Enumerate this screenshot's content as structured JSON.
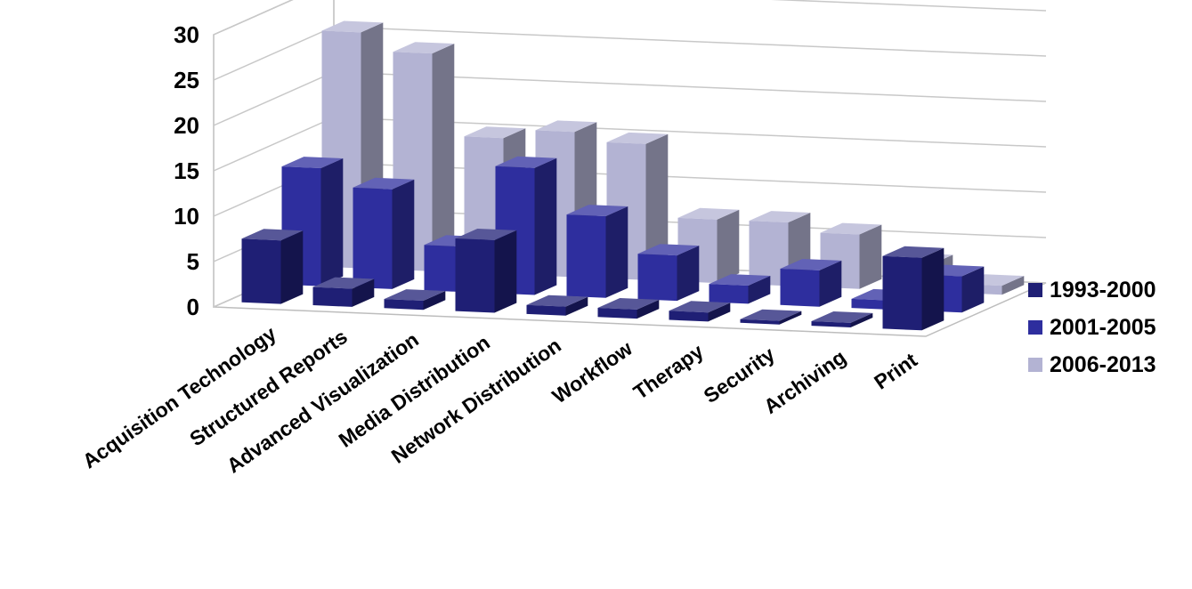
{
  "chart_data": {
    "type": "bar",
    "title": "",
    "xlabel": "",
    "ylabel": "",
    "ylim": [
      0,
      30
    ],
    "yticks": [
      "0",
      "5",
      "10",
      "15",
      "20",
      "25",
      "30"
    ],
    "categories": [
      "Acquisition Technology",
      "Structured Reports",
      "Advanced Visualization",
      "Media Distribution",
      "Network Distribution",
      "Workflow",
      "Therapy",
      "Security",
      "Archiving",
      "Print"
    ],
    "series": [
      {
        "name": "1993-2000",
        "color": "#1f1f75",
        "values": [
          7,
          2,
          1,
          8,
          1,
          1,
          1,
          0.4,
          0.5,
          8
        ]
      },
      {
        "name": "2001-2005",
        "color": "#2e2e9e",
        "values": [
          13,
          11,
          5,
          14,
          9,
          5,
          2,
          4,
          1,
          4
        ]
      },
      {
        "name": "2006-2013",
        "color": "#b3b3d3",
        "values": [
          26,
          24,
          15,
          16,
          15,
          7,
          7,
          6,
          3,
          1
        ]
      }
    ],
    "grid": true,
    "legend_position": "right",
    "three_d": true
  }
}
